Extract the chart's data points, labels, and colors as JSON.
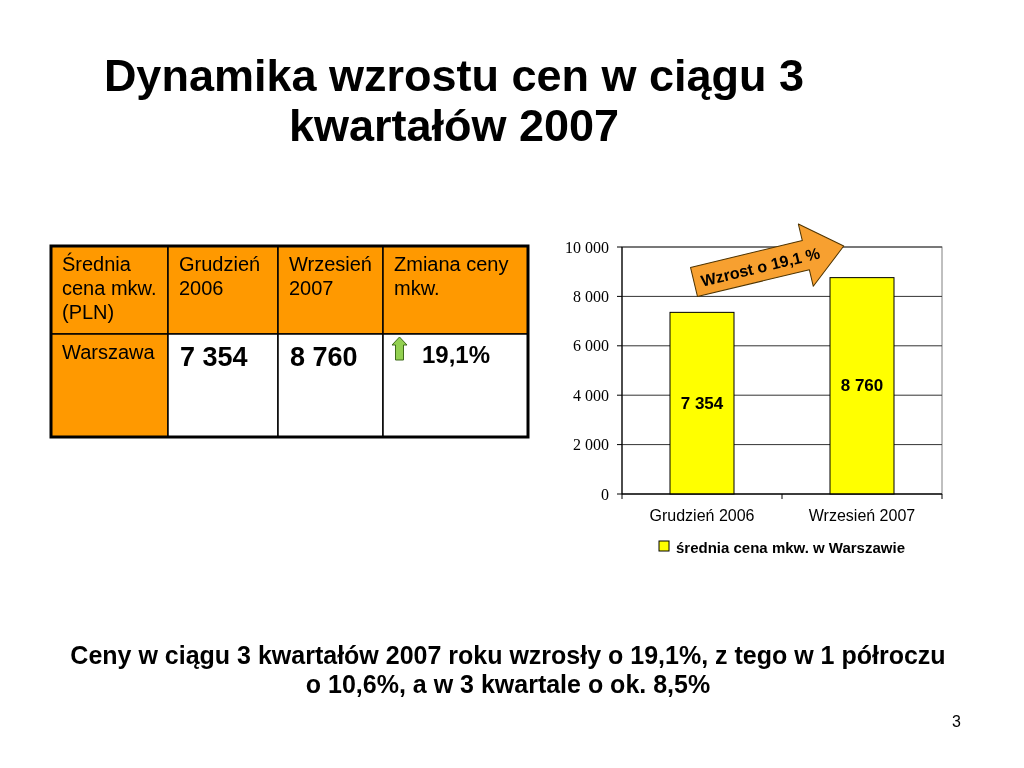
{
  "chart_data": [
    {
      "type": "other",
      "title": "Dynamika wzrostu cen w ciągu 3 kwartałów 2007",
      "annotations": [
        "Średnia cena mkw. (PLN)",
        "Grudzień 2006",
        "Wrzesień 2007",
        "Zmiana ceny mkw.",
        "Warszawa",
        "7 354",
        "8 760",
        "19,1%",
        "3"
      ]
    },
    {
      "type": "bar",
      "categories": [
        "Grudzień 2006",
        "Wrzesień 2007"
      ],
      "series": [
        {
          "name": "średnia cena mkw. w Warszawie",
          "color": "#ffff00",
          "values": [
            7354,
            8760
          ],
          "value_labels": [
            "7 354",
            "8 760"
          ]
        }
      ],
      "ylim": [
        0,
        10000
      ],
      "yticks": [
        0,
        {
          "value": 2000,
          "label": "2 000"
        },
        {
          "value": 4000,
          "label": "4 000"
        },
        {
          "value": 6000,
          "label": "6 000"
        },
        {
          "value": 8000,
          "label": "8 000"
        },
        {
          "value": 10000,
          "label": "10 000"
        }
      ],
      "grid": "y",
      "legend": "bottom",
      "annotations": [
        "Wzrost o 19,1 %",
        "Ceny w ciągu 3 kwartałów 2007 roku wzrosły o 19,1%, z tego w 1 półroczu o 10,6%, a w 3 kwartale o ok. 8,5%"
      ]
    }
  ]
}
